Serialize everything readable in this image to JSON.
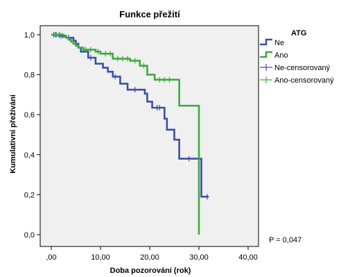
{
  "chart_data": {
    "type": "line",
    "title": "Funkce přežití",
    "xlabel": "Doba pozorování (rok)",
    "ylabel": "Kumulativní přežívání",
    "xlim": [
      0,
      40
    ],
    "ylim": [
      0,
      1
    ],
    "x_ticks": [
      0,
      10,
      20,
      30,
      40
    ],
    "x_tick_labels": [
      ",00",
      "10,00",
      "20,00",
      "30,00",
      "40,00"
    ],
    "y_ticks": [
      0,
      0.2,
      0.4,
      0.6,
      0.8,
      1.0
    ],
    "y_tick_labels": [
      "0,0",
      "0,2",
      "0,4",
      "0,6",
      "0,8",
      "1,0"
    ],
    "grid": false,
    "plot_background": "#f0f0f0",
    "legend": {
      "title": "ATG",
      "placement": "right",
      "items": [
        {
          "label": "Ne",
          "kind": "line",
          "color": "#3c4fa8"
        },
        {
          "label": "Ano",
          "kind": "line",
          "color": "#3daa3d"
        },
        {
          "label": "Ne-censorovaný",
          "kind": "censor",
          "color": "#3c4fa8"
        },
        {
          "label": "Ano-censorovaný",
          "kind": "censor",
          "color": "#3daa3d"
        }
      ]
    },
    "annotation": "P = 0,047",
    "series": [
      {
        "name": "Ne",
        "color": "#3c4fa8",
        "step_x": [
          0,
          1.4,
          2.5,
          3.0,
          4.5,
          5.0,
          5.5,
          6.0,
          7.5,
          9.0,
          10.5,
          11.5,
          12.5,
          14.0,
          15.5,
          19.0,
          19.5,
          20.5,
          23.0,
          23.5,
          25.0,
          26.0,
          30.5
        ],
        "step_y": [
          1.0,
          0.995,
          0.99,
          0.985,
          0.97,
          0.955,
          0.935,
          0.915,
          0.885,
          0.855,
          0.835,
          0.815,
          0.79,
          0.755,
          0.725,
          0.705,
          0.665,
          0.635,
          0.58,
          0.525,
          0.475,
          0.38,
          0.19
        ],
        "end_x": 32.0,
        "censored": [
          {
            "x": 0.5,
            "y": 1.0
          },
          {
            "x": 1.0,
            "y": 1.0
          },
          {
            "x": 1.8,
            "y": 0.995
          },
          {
            "x": 2.2,
            "y": 0.995
          },
          {
            "x": 3.5,
            "y": 0.985
          },
          {
            "x": 8.0,
            "y": 0.885
          },
          {
            "x": 13.0,
            "y": 0.79
          },
          {
            "x": 17.0,
            "y": 0.725
          },
          {
            "x": 21.5,
            "y": 0.635
          },
          {
            "x": 22.0,
            "y": 0.635
          },
          {
            "x": 28.0,
            "y": 0.38
          },
          {
            "x": 31.7,
            "y": 0.19
          }
        ]
      },
      {
        "name": "Ano",
        "color": "#3daa3d",
        "step_x": [
          0,
          2.5,
          3.0,
          3.5,
          4.0,
          4.5,
          5.0,
          5.5,
          6.5,
          9.0,
          10.0,
          12.5,
          16.0,
          18.0,
          19.5,
          21.0,
          26.0,
          30.0
        ],
        "step_y": [
          1.0,
          0.995,
          0.985,
          0.975,
          0.965,
          0.955,
          0.945,
          0.935,
          0.925,
          0.915,
          0.905,
          0.88,
          0.87,
          0.845,
          0.8,
          0.775,
          0.645,
          0.0
        ],
        "end_x": 30.0,
        "censored": [
          {
            "x": 0.8,
            "y": 1.0
          },
          {
            "x": 1.6,
            "y": 1.0
          },
          {
            "x": 7.0,
            "y": 0.925
          },
          {
            "x": 8.0,
            "y": 0.925
          },
          {
            "x": 9.5,
            "y": 0.915
          },
          {
            "x": 11.0,
            "y": 0.905
          },
          {
            "x": 12.0,
            "y": 0.905
          },
          {
            "x": 13.5,
            "y": 0.88
          },
          {
            "x": 14.5,
            "y": 0.88
          },
          {
            "x": 15.5,
            "y": 0.88
          },
          {
            "x": 17.0,
            "y": 0.87
          },
          {
            "x": 18.8,
            "y": 0.845
          },
          {
            "x": 22.0,
            "y": 0.775
          },
          {
            "x": 23.0,
            "y": 0.775
          },
          {
            "x": 24.0,
            "y": 0.775
          }
        ]
      }
    ]
  }
}
